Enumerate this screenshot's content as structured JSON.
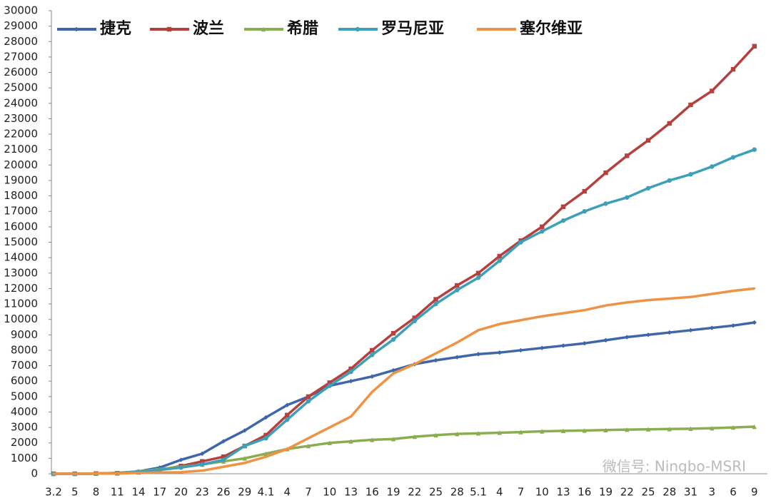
{
  "chart_data": {
    "type": "line",
    "categories": [
      "3.2",
      "5",
      "8",
      "11",
      "14",
      "17",
      "20",
      "23",
      "26",
      "29",
      "4.1",
      "4",
      "7",
      "10",
      "13",
      "16",
      "19",
      "22",
      "25",
      "28",
      "5.1",
      "4",
      "7",
      "10",
      "13",
      "16",
      "19",
      "22",
      "25",
      "28",
      "31",
      "3",
      "6",
      "9"
    ],
    "series": [
      {
        "name": "捷克",
        "color": "#3f66a8",
        "marker": "diamond",
        "values": [
          0,
          0,
          10,
          50,
          150,
          400,
          900,
          1300,
          2100,
          2800,
          3650,
          4450,
          5000,
          5700,
          6000,
          6300,
          6700,
          7100,
          7350,
          7550,
          7750,
          7850,
          8000,
          8150,
          8300,
          8450,
          8650,
          8850,
          9000,
          9150,
          9300,
          9450,
          9600,
          9800
        ]
      },
      {
        "name": "波兰",
        "color": "#b5403d",
        "marker": "square",
        "values": [
          0,
          0,
          10,
          30,
          100,
          250,
          500,
          800,
          1100,
          1800,
          2500,
          3800,
          5000,
          5900,
          6800,
          8000,
          9100,
          10100,
          11300,
          12200,
          13000,
          14100,
          15100,
          16000,
          17300,
          18300,
          19500,
          20600,
          21600,
          22700,
          23900,
          24800,
          26200,
          27700
        ]
      },
      {
        "name": "希腊",
        "color": "#8aae4f",
        "marker": "triangle",
        "values": [
          0,
          0,
          10,
          50,
          150,
          300,
          450,
          600,
          800,
          1000,
          1300,
          1600,
          1800,
          2000,
          2100,
          2200,
          2250,
          2400,
          2500,
          2580,
          2620,
          2660,
          2700,
          2750,
          2780,
          2800,
          2830,
          2860,
          2880,
          2900,
          2920,
          2950,
          3000,
          3050
        ]
      },
      {
        "name": "罗马尼亚",
        "color": "#3d9fb8",
        "marker": "circle",
        "values": [
          0,
          0,
          10,
          40,
          120,
          250,
          400,
          600,
          900,
          1800,
          2300,
          3500,
          4700,
          5700,
          6600,
          7700,
          8700,
          9900,
          11000,
          11900,
          12700,
          13800,
          15000,
          15700,
          16400,
          17000,
          17500,
          17900,
          18500,
          19000,
          19400,
          19900,
          20500,
          21000
        ]
      },
      {
        "name": "塞尔维亚",
        "color": "#ef9244",
        "marker": "none",
        "values": [
          0,
          0,
          10,
          20,
          50,
          80,
          100,
          200,
          450,
          700,
          1100,
          1600,
          2300,
          3000,
          3700,
          5300,
          6500,
          7100,
          7800,
          8500,
          9300,
          9700,
          9950,
          10200,
          10400,
          10600,
          10900,
          11100,
          11250,
          11350,
          11450,
          11650,
          11850,
          12000
        ]
      }
    ],
    "ylim": [
      0,
      30000
    ],
    "yticks": [
      0,
      1000,
      2000,
      3000,
      4000,
      5000,
      6000,
      7000,
      8000,
      9000,
      10000,
      11000,
      12000,
      13000,
      14000,
      15000,
      16000,
      17000,
      18000,
      19000,
      20000,
      21000,
      22000,
      23000,
      24000,
      25000,
      26000,
      27000,
      28000,
      29000,
      30000
    ],
    "legend": "top-left",
    "watermark": "微信号: Ningbo-MSRI"
  }
}
